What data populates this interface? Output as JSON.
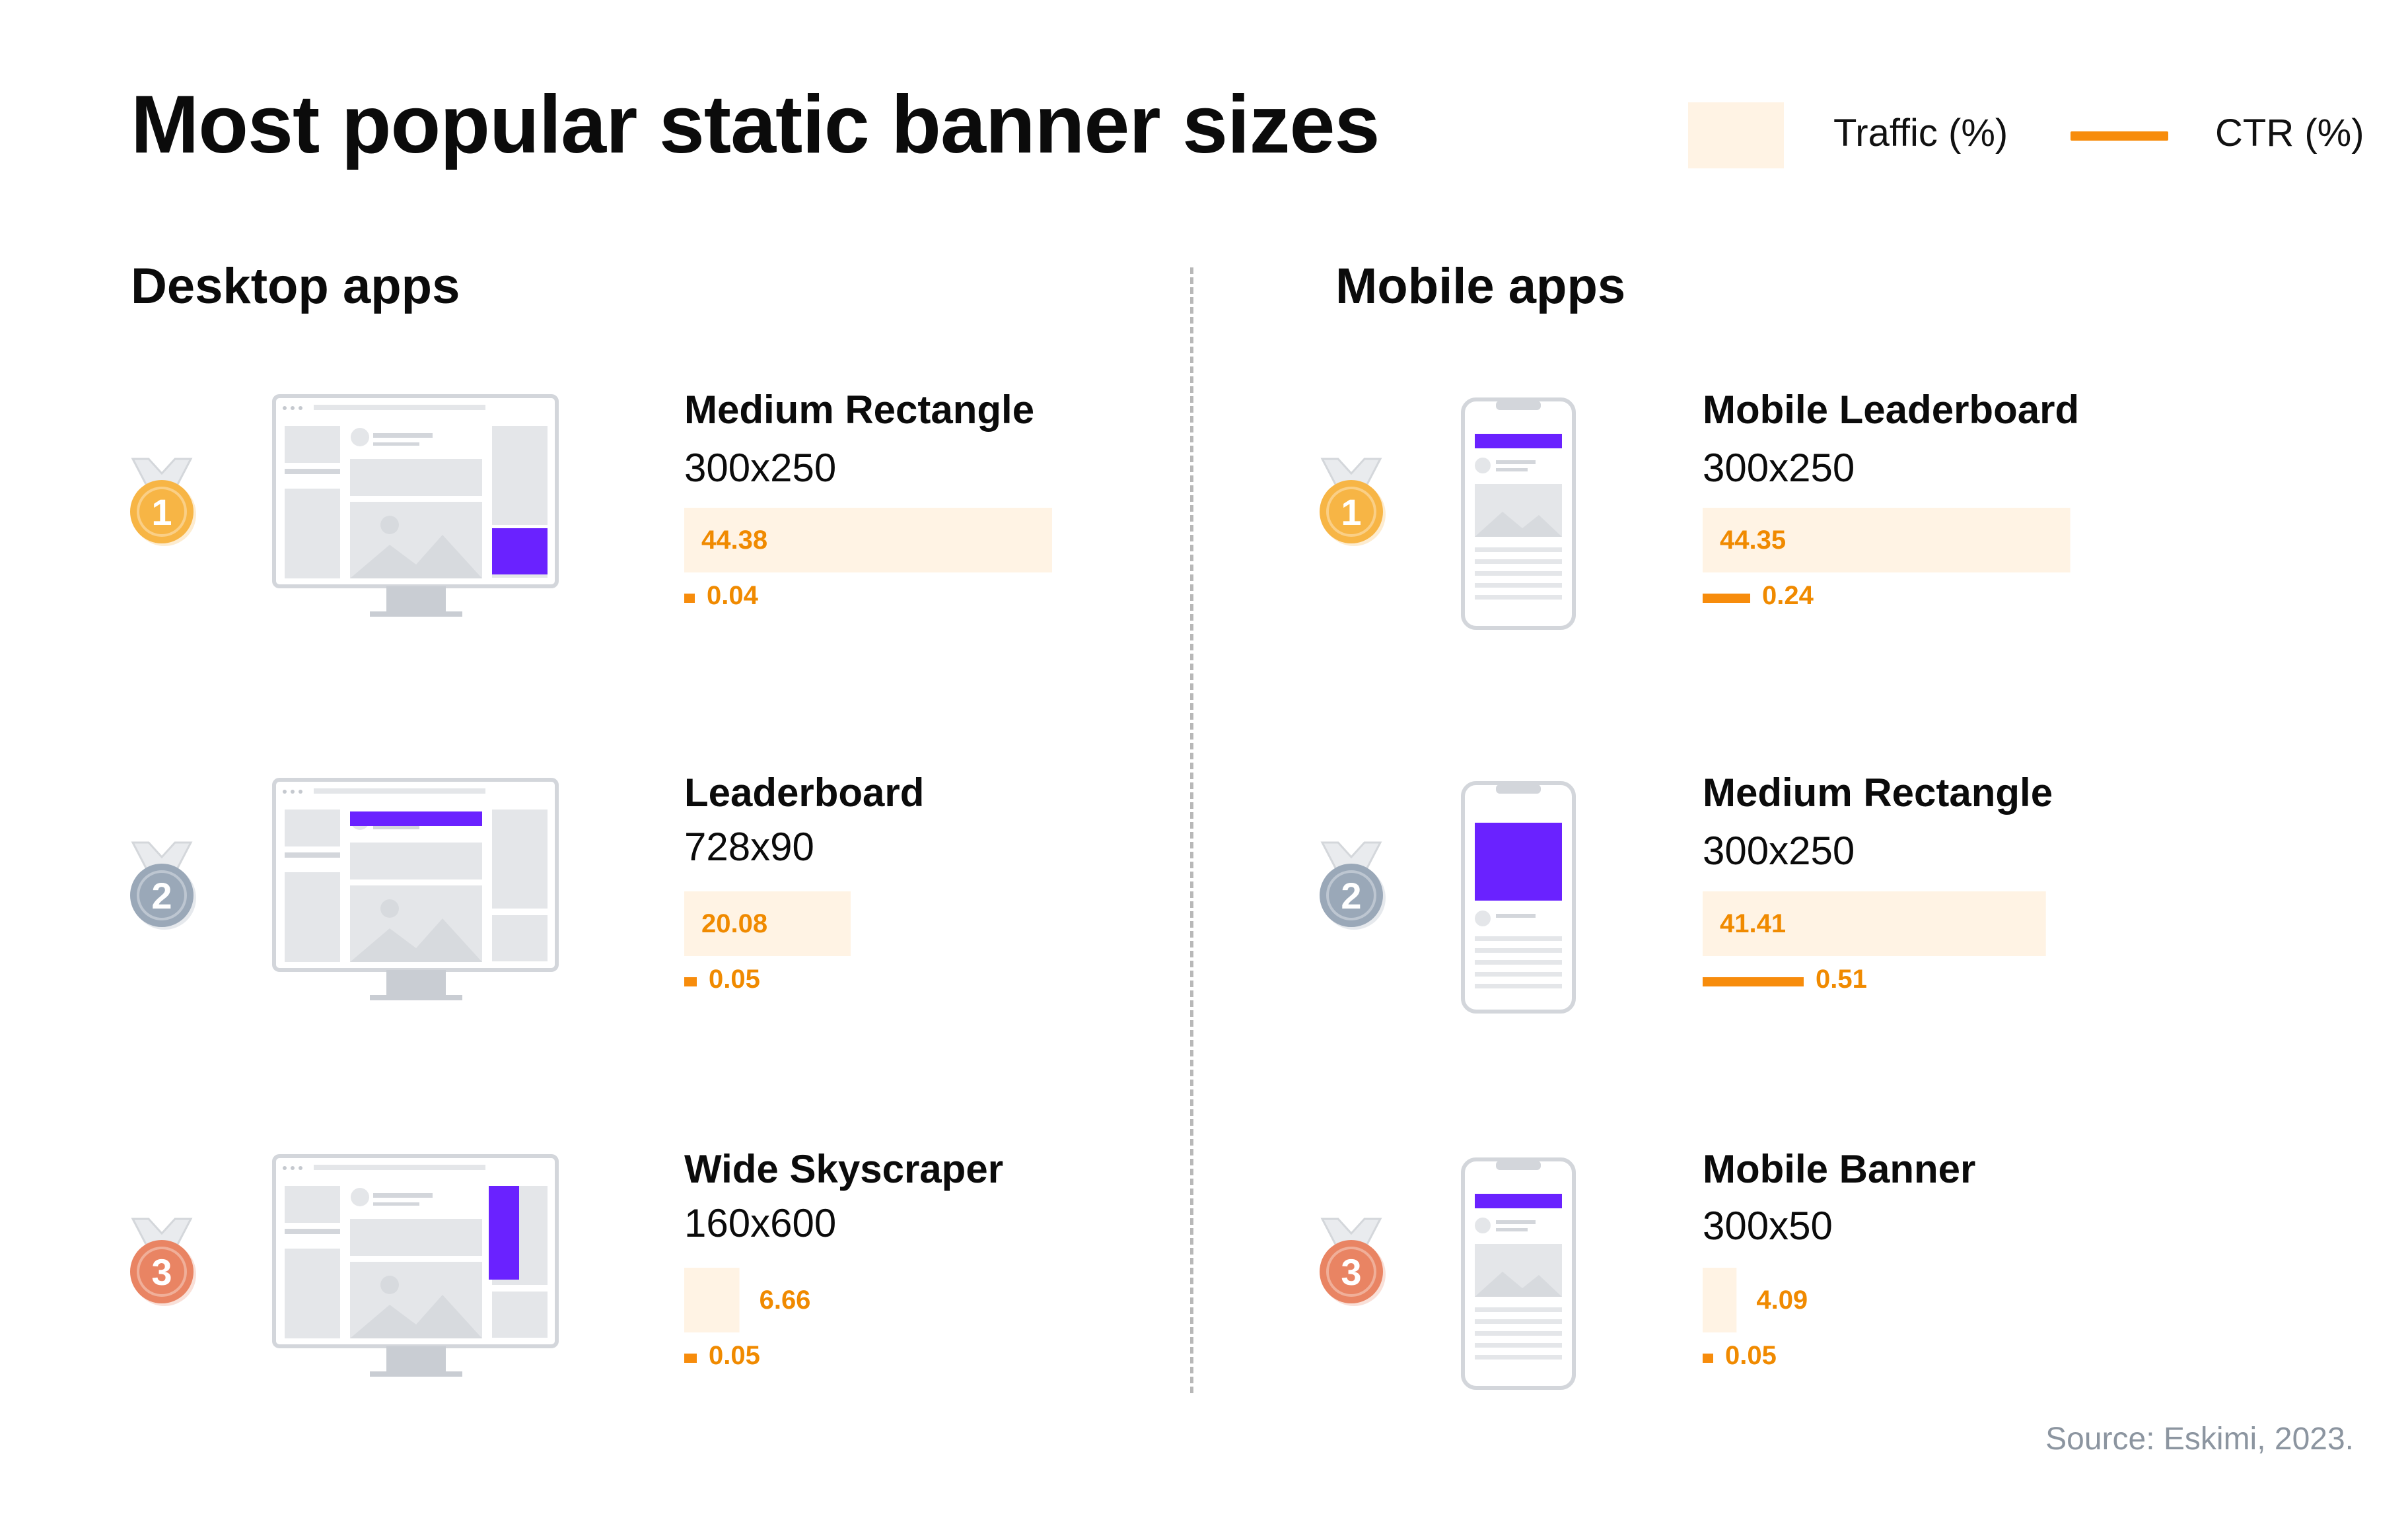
{
  "title": "Most popular static banner sizes",
  "legend": {
    "traffic_label": "Traffic (%)",
    "ctr_label": "CTR (%)"
  },
  "sections": {
    "desktop": "Desktop apps",
    "mobile": "Mobile apps"
  },
  "source": "Source: Eskimi, 2023.",
  "colors": {
    "traffic_bar": "#fff3e4",
    "ctr_bar": "#f78c0c",
    "value_text": "#f08a00",
    "highlight": "#6a22ff",
    "device_outline": "#d5d8dd",
    "medal_gold": "#f7b545",
    "medal_silver": "#9aa8b8",
    "medal_bronze": "#e98463"
  },
  "chart_data": [
    {
      "type": "bar",
      "title": "Desktop apps",
      "categories": [
        "Medium Rectangle",
        "Leaderboard",
        "Wide Skyscraper"
      ],
      "sizes": [
        "300x250",
        "728x90",
        "160x600"
      ],
      "ranks": [
        "1",
        "2",
        "3"
      ],
      "icons": [
        "desktop-medium-rectangle-icon",
        "desktop-leaderboard-icon",
        "desktop-wide-skyscraper-icon"
      ],
      "series": [
        {
          "name": "Traffic (%)",
          "values": [
            44.38,
            20.08,
            6.66
          ],
          "labels": [
            "44.38",
            "20.08",
            "6.66"
          ]
        },
        {
          "name": "CTR (%)",
          "values": [
            0.04,
            0.05,
            0.05
          ],
          "labels": [
            "0.04",
            "0.05",
            "0.05"
          ]
        }
      ]
    },
    {
      "type": "bar",
      "title": "Mobile apps",
      "categories": [
        "Mobile Leaderboard",
        "Medium Rectangle",
        "Mobile Banner"
      ],
      "sizes": [
        "300x250",
        "300x250",
        "300x50"
      ],
      "ranks": [
        "1",
        "2",
        "3"
      ],
      "icons": [
        "mobile-leaderboard-icon",
        "mobile-medium-rectangle-icon",
        "mobile-banner-icon"
      ],
      "series": [
        {
          "name": "Traffic (%)",
          "values": [
            44.35,
            41.41,
            4.09
          ],
          "labels": [
            "44.35",
            "41.41",
            "4.09"
          ]
        },
        {
          "name": "CTR (%)",
          "values": [
            0.24,
            0.51,
            0.05
          ],
          "labels": [
            "0.24",
            "0.51",
            "0.05"
          ]
        }
      ]
    }
  ]
}
